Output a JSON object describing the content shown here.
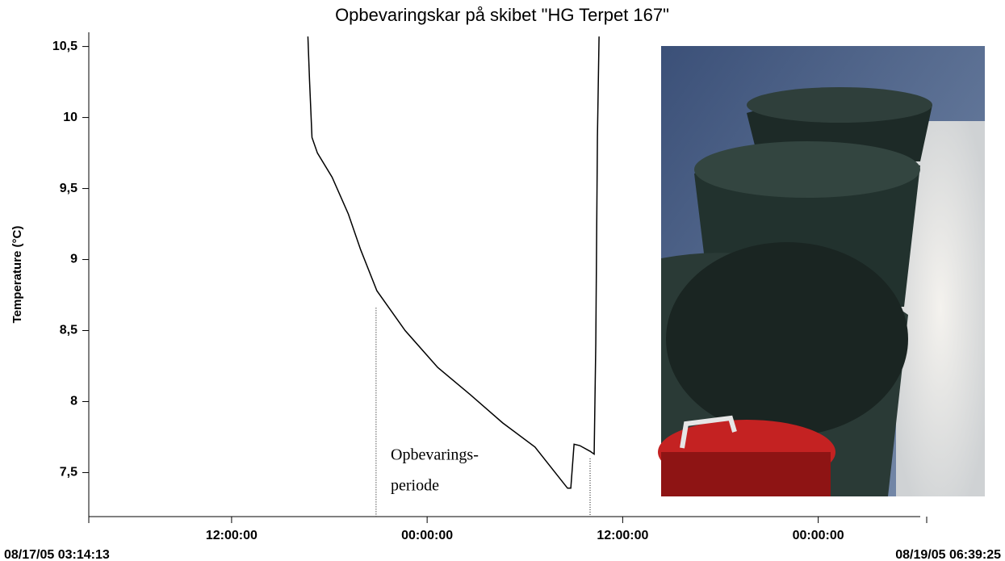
{
  "chart_data": {
    "type": "line",
    "title": "Opbevaringskar på skibet \"HG Terpet 167\"",
    "y_label": "Temperature (°C)",
    "x": [
      "2005-08-17T16:41",
      "2005-08-17T16:47",
      "2005-08-17T16:56",
      "2005-08-17T17:16",
      "2005-08-17T18:10",
      "2005-08-17T19:10",
      "2005-08-17T19:55",
      "2005-08-17T20:55",
      "2005-08-17T22:39",
      "2005-08-18T00:39",
      "2005-08-18T02:38",
      "2005-08-18T04:38",
      "2005-08-18T06:37",
      "2005-08-18T08:37",
      "2005-08-18T08:49",
      "2005-08-18T09:01",
      "2005-08-18T09:22",
      "2005-08-18T10:00",
      "2005-08-18T10:15",
      "2005-08-18T10:21",
      "2005-08-18T10:27",
      "2005-08-18T10:33"
    ],
    "series": [
      {
        "name": "Temperature",
        "color": "#000000",
        "values": [
          10.57,
          10.26,
          9.86,
          9.75,
          9.58,
          9.32,
          9.07,
          8.78,
          8.5,
          8.24,
          8.05,
          7.85,
          7.68,
          7.39,
          7.39,
          7.7,
          7.69,
          7.65,
          7.63,
          8.41,
          9.86,
          10.57
        ]
      }
    ],
    "xlim": [
      "2005-08-17T03:14:13",
      "2005-08-19T06:39:25"
    ],
    "xticks": [
      {
        "value": "2005-08-17T03:14:13",
        "label": "08/17/05 03:14:13"
      },
      {
        "value": "2005-08-17T12:00:00",
        "label": "12:00:00"
      },
      {
        "value": "2005-08-18T00:00:00",
        "label": "00:00:00"
      },
      {
        "value": "2005-08-18T12:00:00",
        "label": "12:00:00"
      },
      {
        "value": "2005-08-19T00:00:00",
        "label": "00:00:00"
      },
      {
        "value": "2005-08-19T06:39:25",
        "label": "08/19/05 06:39:25"
      }
    ],
    "ylim": [
      7.19,
      10.6
    ],
    "yticks": [
      {
        "value": 7.5,
        "label": "7,5"
      },
      8,
      {
        "value": 8.5,
        "label": "8,5"
      },
      9,
      {
        "value": 9.5,
        "label": "9,5"
      },
      10,
      {
        "value": 10.5,
        "label": "10,5"
      }
    ],
    "grid": false,
    "annotation": {
      "text": [
        "Opbevarings-",
        "periode"
      ],
      "x": [
        "2005-08-17T20:52",
        "2005-08-18T10:00"
      ],
      "y_top": [
        8.66,
        7.6
      ]
    }
  }
}
